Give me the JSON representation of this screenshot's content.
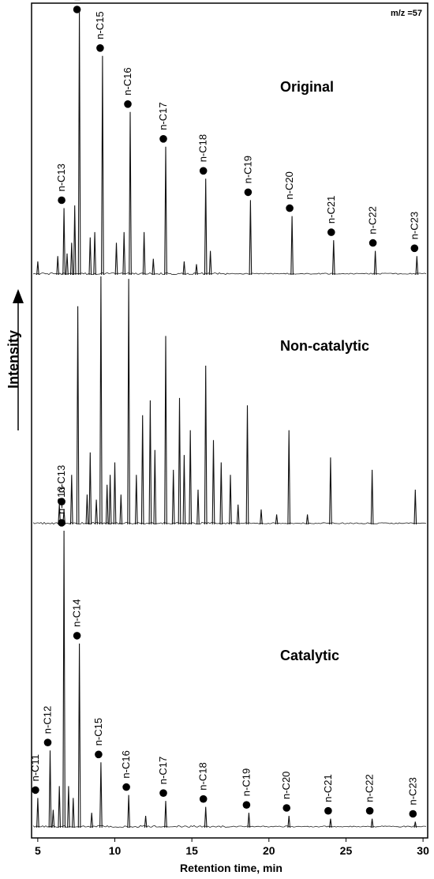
{
  "chart_data": {
    "type": "line",
    "mz_label": "m/z =57",
    "xlabel": "Retention time, min",
    "ylabel": "Intensity",
    "xlim": [
      4.7,
      30.2
    ],
    "xticks": [
      5,
      10,
      15,
      20,
      25,
      30
    ],
    "panels": [
      {
        "name": "Original",
        "peaks": [
          {
            "x": 5.0,
            "h": 0.05
          },
          {
            "x": 6.3,
            "h": 0.07
          },
          {
            "x": 6.7,
            "h": 0.25
          },
          {
            "x": 6.9,
            "h": 0.08
          },
          {
            "x": 7.2,
            "h": 0.12
          },
          {
            "x": 7.4,
            "h": 0.26
          },
          {
            "x": 7.7,
            "h": 1.0
          },
          {
            "x": 8.4,
            "h": 0.14
          },
          {
            "x": 8.7,
            "h": 0.16
          },
          {
            "x": 9.2,
            "h": 0.82
          },
          {
            "x": 10.1,
            "h": 0.12
          },
          {
            "x": 10.6,
            "h": 0.16
          },
          {
            "x": 11.0,
            "h": 0.61
          },
          {
            "x": 11.9,
            "h": 0.16
          },
          {
            "x": 12.5,
            "h": 0.06
          },
          {
            "x": 13.3,
            "h": 0.48
          },
          {
            "x": 14.5,
            "h": 0.05
          },
          {
            "x": 15.3,
            "h": 0.04
          },
          {
            "x": 15.9,
            "h": 0.36
          },
          {
            "x": 16.2,
            "h": 0.09
          },
          {
            "x": 18.8,
            "h": 0.28
          },
          {
            "x": 21.5,
            "h": 0.22
          },
          {
            "x": 24.2,
            "h": 0.13
          },
          {
            "x": 26.9,
            "h": 0.09
          },
          {
            "x": 29.6,
            "h": 0.07
          }
        ],
        "labels": [
          {
            "text": "n-C13",
            "x": 6.7,
            "h": 0.25
          },
          {
            "text": "n-C14",
            "x": 7.7,
            "h": 1.0
          },
          {
            "text": "n-C15",
            "x": 9.2,
            "h": 0.82
          },
          {
            "text": "n-C16",
            "x": 11.0,
            "h": 0.61
          },
          {
            "text": "n-C17",
            "x": 13.3,
            "h": 0.48
          },
          {
            "text": "n-C18",
            "x": 15.9,
            "h": 0.36
          },
          {
            "text": "n-C19",
            "x": 18.8,
            "h": 0.28
          },
          {
            "text": "n-C20",
            "x": 21.5,
            "h": 0.22
          },
          {
            "text": "n-C21",
            "x": 24.2,
            "h": 0.13
          },
          {
            "text": "n-C22",
            "x": 26.9,
            "h": 0.09
          },
          {
            "text": "n-C23",
            "x": 29.6,
            "h": 0.07
          }
        ]
      },
      {
        "name": "Non-catalytic",
        "peaks": [
          {
            "x": 6.4,
            "h": 0.08
          },
          {
            "x": 6.7,
            "h": 0.06
          },
          {
            "x": 7.2,
            "h": 0.2
          },
          {
            "x": 7.6,
            "h": 0.88
          },
          {
            "x": 8.2,
            "h": 0.12
          },
          {
            "x": 8.4,
            "h": 0.29
          },
          {
            "x": 8.8,
            "h": 0.1
          },
          {
            "x": 9.1,
            "h": 1.0
          },
          {
            "x": 9.5,
            "h": 0.16
          },
          {
            "x": 9.7,
            "h": 0.2
          },
          {
            "x": 10.0,
            "h": 0.25
          },
          {
            "x": 10.4,
            "h": 0.12
          },
          {
            "x": 10.9,
            "h": 0.99
          },
          {
            "x": 11.4,
            "h": 0.2
          },
          {
            "x": 11.8,
            "h": 0.44
          },
          {
            "x": 12.3,
            "h": 0.5
          },
          {
            "x": 12.6,
            "h": 0.3
          },
          {
            "x": 13.3,
            "h": 0.76
          },
          {
            "x": 13.8,
            "h": 0.22
          },
          {
            "x": 14.2,
            "h": 0.51
          },
          {
            "x": 14.5,
            "h": 0.28
          },
          {
            "x": 14.9,
            "h": 0.38
          },
          {
            "x": 15.4,
            "h": 0.14
          },
          {
            "x": 15.9,
            "h": 0.64
          },
          {
            "x": 16.4,
            "h": 0.34
          },
          {
            "x": 16.9,
            "h": 0.25
          },
          {
            "x": 17.5,
            "h": 0.2
          },
          {
            "x": 18.0,
            "h": 0.08
          },
          {
            "x": 18.6,
            "h": 0.48
          },
          {
            "x": 19.5,
            "h": 0.06
          },
          {
            "x": 20.5,
            "h": 0.04
          },
          {
            "x": 21.3,
            "h": 0.38
          },
          {
            "x": 22.5,
            "h": 0.04
          },
          {
            "x": 24.0,
            "h": 0.27
          },
          {
            "x": 26.7,
            "h": 0.22
          },
          {
            "x": 29.5,
            "h": 0.14
          }
        ],
        "labels": [
          {
            "text": "n-C13",
            "x": 6.7,
            "h": 0.06
          }
        ]
      },
      {
        "name": "Catalytic",
        "peaks": [
          {
            "x": 5.0,
            "h": 0.1
          },
          {
            "x": 5.8,
            "h": 0.26
          },
          {
            "x": 6.0,
            "h": 0.06
          },
          {
            "x": 6.4,
            "h": 0.14
          },
          {
            "x": 6.7,
            "h": 1.0
          },
          {
            "x": 7.0,
            "h": 0.14
          },
          {
            "x": 7.3,
            "h": 0.1
          },
          {
            "x": 7.7,
            "h": 0.62
          },
          {
            "x": 8.5,
            "h": 0.05
          },
          {
            "x": 9.1,
            "h": 0.22
          },
          {
            "x": 10.9,
            "h": 0.11
          },
          {
            "x": 12.0,
            "h": 0.04
          },
          {
            "x": 13.3,
            "h": 0.09
          },
          {
            "x": 15.9,
            "h": 0.07
          },
          {
            "x": 18.7,
            "h": 0.05
          },
          {
            "x": 21.3,
            "h": 0.04
          },
          {
            "x": 24.0,
            "h": 0.03
          },
          {
            "x": 26.7,
            "h": 0.03
          },
          {
            "x": 29.5,
            "h": 0.02
          }
        ],
        "labels": [
          {
            "text": "n-C11",
            "x": 5.0,
            "h": 0.1
          },
          {
            "text": "n-C12",
            "x": 5.8,
            "h": 0.26
          },
          {
            "text": "n-C13",
            "x": 6.7,
            "h": 1.0
          },
          {
            "text": "n-C14",
            "x": 7.7,
            "h": 0.62
          },
          {
            "text": "n-C15",
            "x": 9.1,
            "h": 0.22
          },
          {
            "text": "n-C16",
            "x": 10.9,
            "h": 0.11
          },
          {
            "text": "n-C17",
            "x": 13.3,
            "h": 0.09
          },
          {
            "text": "n-C18",
            "x": 15.9,
            "h": 0.07
          },
          {
            "text": "n-C19",
            "x": 18.7,
            "h": 0.05
          },
          {
            "text": "n-C20",
            "x": 21.3,
            "h": 0.04
          },
          {
            "text": "n-C21",
            "x": 24.0,
            "h": 0.03
          },
          {
            "text": "n-C22",
            "x": 26.7,
            "h": 0.03
          },
          {
            "text": "n-C23",
            "x": 29.5,
            "h": 0.02
          }
        ]
      }
    ]
  }
}
